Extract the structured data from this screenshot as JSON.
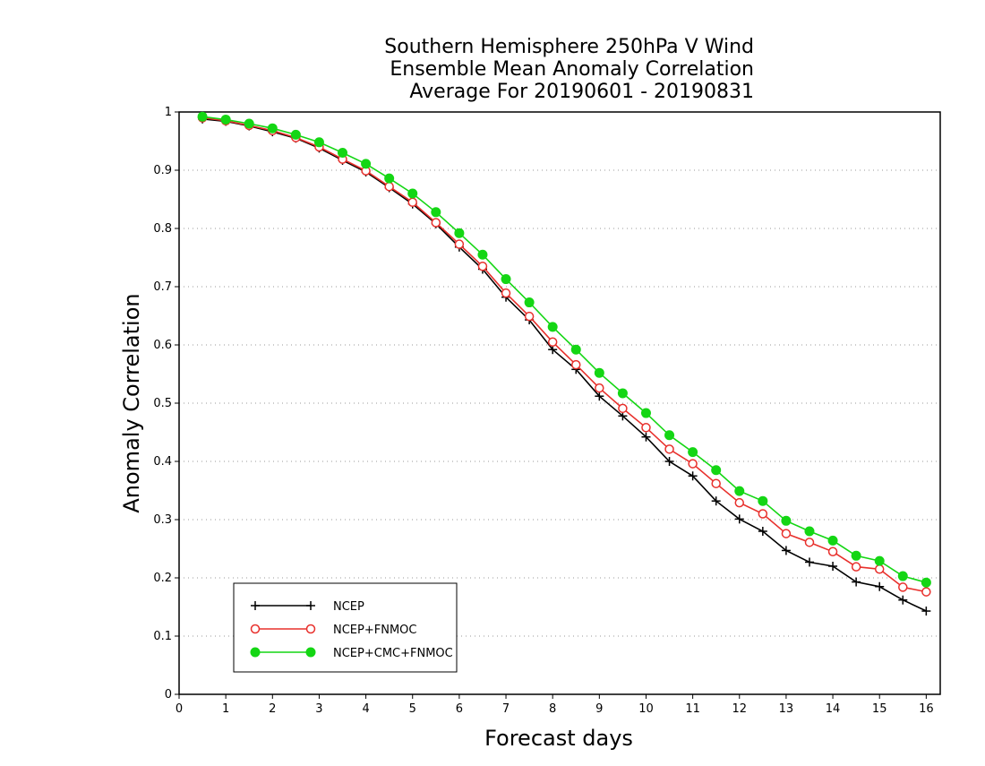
{
  "chart_data": {
    "type": "line",
    "title_lines": [
      "Southern Hemisphere 250hPa V Wind",
      "Ensemble Mean Anomaly Correlation",
      "Average For 20190601 - 20190831"
    ],
    "xlabel": "Forecast days",
    "ylabel": "Anomaly Correlation",
    "xlim": [
      0,
      16.3
    ],
    "ylim": [
      0,
      1
    ],
    "x_ticks": [
      0,
      1,
      2,
      3,
      4,
      5,
      6,
      7,
      8,
      9,
      10,
      11,
      12,
      13,
      14,
      15,
      16
    ],
    "y_ticks": [
      0,
      0.1,
      0.2,
      0.3,
      0.4,
      0.5,
      0.6,
      0.7,
      0.8,
      0.9,
      1
    ],
    "y_tick_labels": [
      "0",
      "0.1",
      "0.2",
      "0.3",
      "0.4",
      "0.5",
      "0.6",
      "0.7",
      "0.8",
      "0.9",
      "1"
    ],
    "grid": "horizontal dotted",
    "legend_position": "bottom-left",
    "x": [
      0.5,
      1,
      1.5,
      2,
      2.5,
      3,
      3.5,
      4,
      4.5,
      5,
      5.5,
      6,
      6.5,
      7,
      7.5,
      8,
      8.5,
      9,
      9.5,
      10,
      10.5,
      11,
      11.5,
      12,
      12.5,
      13,
      13.5,
      14,
      14.5,
      15,
      15.5,
      16
    ],
    "series": [
      {
        "name": "NCEP",
        "color": "#000000",
        "marker": "plus",
        "values": [
          0.988,
          0.984,
          0.976,
          0.966,
          0.955,
          0.938,
          0.917,
          0.897,
          0.87,
          0.842,
          0.808,
          0.768,
          0.73,
          0.682,
          0.643,
          0.592,
          0.558,
          0.512,
          0.478,
          0.442,
          0.4,
          0.375,
          0.332,
          0.301,
          0.28,
          0.247,
          0.227,
          0.22,
          0.193,
          0.185,
          0.162,
          0.143
        ]
      },
      {
        "name": "NCEP+FNMOC",
        "color": "#e8302c",
        "marker": "open-circle",
        "values": [
          0.99,
          0.985,
          0.977,
          0.968,
          0.956,
          0.94,
          0.919,
          0.899,
          0.872,
          0.845,
          0.81,
          0.773,
          0.735,
          0.689,
          0.649,
          0.605,
          0.566,
          0.526,
          0.491,
          0.458,
          0.421,
          0.396,
          0.362,
          0.329,
          0.31,
          0.276,
          0.261,
          0.245,
          0.219,
          0.215,
          0.184,
          0.176
        ]
      },
      {
        "name": "NCEP+CMC+FNMOC",
        "color": "#14d614",
        "marker": "filled-circle",
        "values": [
          0.992,
          0.987,
          0.98,
          0.972,
          0.961,
          0.948,
          0.93,
          0.911,
          0.886,
          0.86,
          0.828,
          0.792,
          0.755,
          0.713,
          0.673,
          0.631,
          0.592,
          0.552,
          0.517,
          0.483,
          0.445,
          0.416,
          0.385,
          0.349,
          0.332,
          0.298,
          0.28,
          0.264,
          0.238,
          0.229,
          0.203,
          0.192
        ]
      }
    ]
  }
}
